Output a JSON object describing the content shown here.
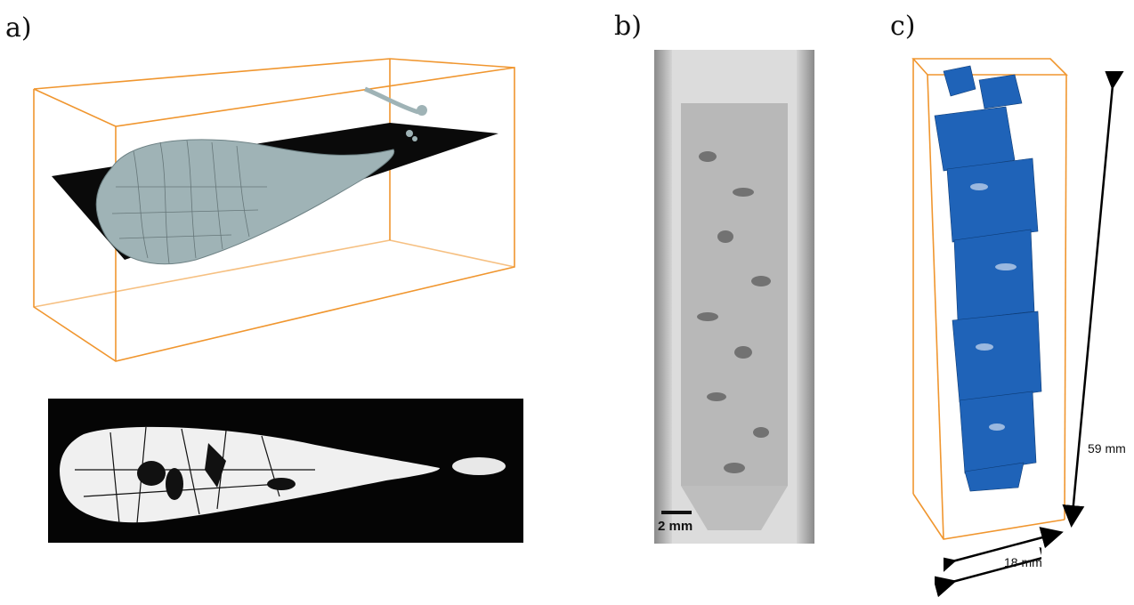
{
  "panels": {
    "a": {
      "label": "a)"
    },
    "b": {
      "label": "b)",
      "scale_bar_text": "2 mm"
    },
    "c": {
      "label": "c)",
      "height_text": "59 mm",
      "width_text": "18 mm"
    }
  },
  "colors": {
    "bounding_box": "#f0962f",
    "particle_blue": "#1f63b8",
    "capsule_grey": "#9fb3b6",
    "slice_black": "#0a0a0a"
  }
}
